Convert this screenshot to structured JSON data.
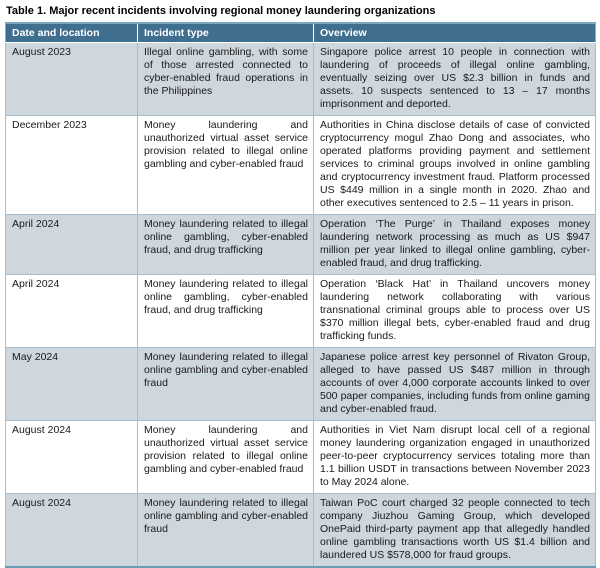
{
  "title": "Table 1. Major recent incidents involving regional money laundering organizations",
  "table": {
    "columns": [
      "Date and location",
      "Incident type",
      "Overview"
    ],
    "rows": [
      {
        "date": "August 2023",
        "incident": "Illegal online gambling, with some of those arrested connected to cyber-enabled fraud operations in the Philippines",
        "overview": "Singapore police arrest 10 people in connection with laundering of proceeds of illegal online gambling, eventually seizing over US $2.3 billion in funds and assets. 10 suspects sentenced to 13 – 17 months imprisonment and deported."
      },
      {
        "date": "December 2023",
        "incident": "Money laundering and unauthorized virtual asset service provision related to illegal online gambling and cyber-enabled fraud",
        "overview": "Authorities in China disclose details of case of convicted cryptocurrency mogul Zhao Dong and associates, who operated platforms providing payment and settlement services to criminal groups involved in online gambling and cryptocurrency investment fraud. Platform processed US $449 million in a single month in 2020. Zhao and other executives sentenced to 2.5 – 11 years in prison."
      },
      {
        "date": "April 2024",
        "incident": "Money laundering related to illegal online gambling, cyber-enabled fraud, and drug trafficking",
        "overview": "Operation ‘The Purge’ in Thailand exposes money laundering network processing as much as US $947 million per year linked to illegal online gambling, cyber-enabled fraud, and drug trafficking."
      },
      {
        "date": "April 2024",
        "incident": "Money laundering related to illegal online gambling, cyber-enabled fraud, and drug trafficking",
        "overview": "Operation ‘Black Hat’ in Thailand uncovers money laundering network collaborating with various transnational criminal groups able to process over US $370 million illegal bets, cyber-enabled fraud and drug trafficking funds."
      },
      {
        "date": "May 2024",
        "incident": "Money laundering related to illegal online gambling and cyber-enabled fraud",
        "overview": "Japanese police arrest key personnel of Rivaton Group, alleged to have passed US $487 million in through accounts of over 4,000 corporate accounts linked to over 500 paper companies, including funds from online gaming and cyber-enabled fraud."
      },
      {
        "date": "August 2024",
        "incident": "Money laundering and unauthorized virtual asset service provision related to illegal online gambling and cyber-enabled fraud",
        "overview": "Authorities in Viet Nam disrupt local cell of a regional money laundering organization engaged in unauthorized peer-to-peer cryptocurrency services totaling more than 1.1 billion USDT in transactions between November 2023 to May 2024 alone."
      },
      {
        "date": "August 2024",
        "incident": "Money laundering related to illegal online gambling and cyber-enabled fraud",
        "overview": "Taiwan PoC court charged 32 people connected to tech company Jiuzhou Gaming Group, which developed OnePaid third-party payment app that allegedly handled online gambling transactions worth US $1.4 billion and laundered US $578,000 for fraud groups."
      }
    ]
  },
  "colors": {
    "header_bg": "#3f6e8e",
    "header_text": "#ffffff",
    "header_top_edge": "#7fa6bf",
    "row_alt_bg": "#ced6de",
    "row_bg": "#ffffff",
    "grid_border": "#a8bcca",
    "outer_border": "#8fa9bc",
    "bottom_border": "#6d9ab5",
    "body_text": "#1a1a1a"
  }
}
